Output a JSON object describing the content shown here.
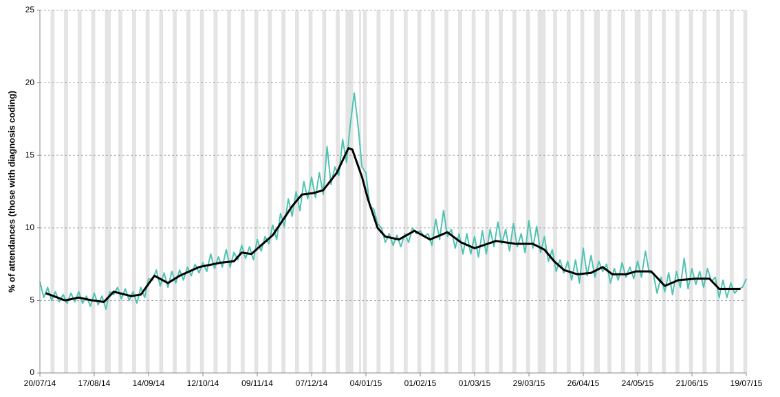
{
  "chart_data": {
    "type": "line",
    "y_label": "% of attendances (those with diagnosis coding)",
    "xlim": [
      0,
      364
    ],
    "ylim": [
      0,
      25
    ],
    "yticks": [
      0,
      5,
      10,
      15,
      20,
      25
    ],
    "xticks": [
      {
        "value": 0,
        "label": "20/07/14"
      },
      {
        "value": 28,
        "label": "17/08/14"
      },
      {
        "value": 56,
        "label": "14/09/14"
      },
      {
        "value": 84,
        "label": "12/10/14"
      },
      {
        "value": 112,
        "label": "09/11/14"
      },
      {
        "value": 140,
        "label": "07/12/14"
      },
      {
        "value": 168,
        "label": "04/01/15"
      },
      {
        "value": 196,
        "label": "01/02/15"
      },
      {
        "value": 224,
        "label": "01/03/15"
      },
      {
        "value": 252,
        "label": "29/03/15"
      },
      {
        "value": 280,
        "label": "26/04/15"
      },
      {
        "value": 308,
        "label": "24/05/15"
      },
      {
        "value": 336,
        "label": "21/06/15"
      },
      {
        "value": 364,
        "label": "19/07/15"
      }
    ],
    "grid": true,
    "band_color": "#e3e3e3",
    "shaded_days": [
      6,
      7,
      13,
      14,
      20,
      21,
      27,
      28,
      34,
      35,
      36,
      41,
      42,
      48,
      49,
      55,
      56,
      62,
      63,
      69,
      70,
      76,
      77,
      83,
      84,
      90,
      91,
      97,
      98,
      104,
      105,
      111,
      112,
      118,
      119,
      125,
      126,
      132,
      133,
      139,
      140,
      146,
      147,
      153,
      154,
      158,
      159,
      160,
      161,
      165,
      167,
      168,
      174,
      175,
      181,
      182,
      188,
      189,
      195,
      196,
      202,
      203,
      209,
      210,
      216,
      217,
      223,
      224,
      230,
      231,
      237,
      238,
      244,
      245,
      251,
      252,
      257,
      258,
      259,
      260,
      265,
      266,
      272,
      273,
      279,
      280,
      286,
      287,
      288,
      293,
      294,
      300,
      301,
      307,
      308,
      309,
      314,
      315,
      321,
      322,
      328,
      329,
      335,
      336,
      342,
      343,
      349,
      350,
      356,
      357,
      363,
      364
    ],
    "series": [
      {
        "color": "#4fc3b3",
        "width": 2,
        "x": [
          0,
          2,
          4,
          6,
          8,
          10,
          12,
          14,
          16,
          18,
          20,
          22,
          24,
          26,
          28,
          30,
          32,
          34,
          36,
          38,
          40,
          42,
          44,
          46,
          48,
          50,
          52,
          54,
          56,
          58,
          60,
          62,
          64,
          66,
          68,
          70,
          72,
          74,
          76,
          78,
          80,
          82,
          84,
          86,
          88,
          90,
          92,
          94,
          96,
          98,
          100,
          102,
          104,
          106,
          108,
          110,
          112,
          114,
          116,
          118,
          120,
          122,
          124,
          126,
          128,
          130,
          132,
          134,
          136,
          138,
          140,
          142,
          144,
          146,
          148,
          150,
          152,
          154,
          156,
          158,
          160,
          162,
          164,
          166,
          168,
          170,
          172,
          174,
          176,
          178,
          180,
          182,
          184,
          186,
          188,
          190,
          192,
          194,
          196,
          198,
          200,
          202,
          204,
          206,
          208,
          210,
          212,
          214,
          216,
          218,
          220,
          222,
          224,
          226,
          228,
          230,
          232,
          234,
          236,
          238,
          240,
          242,
          244,
          246,
          248,
          250,
          252,
          254,
          256,
          258,
          260,
          262,
          264,
          266,
          268,
          270,
          272,
          274,
          276,
          278,
          280,
          282,
          284,
          286,
          288,
          290,
          292,
          294,
          296,
          298,
          300,
          302,
          304,
          306,
          308,
          310,
          312,
          314,
          316,
          318,
          320,
          322,
          324,
          326,
          328,
          330,
          332,
          334,
          336,
          338,
          340,
          342,
          344,
          346,
          348,
          350,
          352,
          354,
          356,
          358,
          360,
          362,
          364
        ],
        "values": [
          6.3,
          5.2,
          5.9,
          5.0,
          5.6,
          4.9,
          5.4,
          4.8,
          5.5,
          4.9,
          5.6,
          4.8,
          5.3,
          4.6,
          5.5,
          4.7,
          5.3,
          4.4,
          5.6,
          5.4,
          5.9,
          5.1,
          5.8,
          5.0,
          5.6,
          4.8,
          5.9,
          5.2,
          6.5,
          6.4,
          7.1,
          6.0,
          6.9,
          5.9,
          7.0,
          6.2,
          7.1,
          6.4,
          7.3,
          6.7,
          7.5,
          6.9,
          7.6,
          7.0,
          8.2,
          7.2,
          8.0,
          7.3,
          8.5,
          7.3,
          8.3,
          7.8,
          8.8,
          7.9,
          8.7,
          7.8,
          9.2,
          8.4,
          9.4,
          8.9,
          10.2,
          9.2,
          11.0,
          10.1,
          12.0,
          10.8,
          12.5,
          11.2,
          13.2,
          12.0,
          13.5,
          12.1,
          13.8,
          12.3,
          15.6,
          13.0,
          14.2,
          13.6,
          16.1,
          14.5,
          17.2,
          19.3,
          17.0,
          14.2,
          13.8,
          11.5,
          11.3,
          10.3,
          10.0,
          9.0,
          9.6,
          8.8,
          9.5,
          8.7,
          9.6,
          9.0,
          10.0,
          9.6,
          9.8,
          9.4,
          9.6,
          8.8,
          10.6,
          9.2,
          11.2,
          9.4,
          9.9,
          8.6,
          9.6,
          8.2,
          9.6,
          8.2,
          9.4,
          8.0,
          9.8,
          8.2,
          9.9,
          8.7,
          10.4,
          8.9,
          9.9,
          8.4,
          10.3,
          8.7,
          9.6,
          8.3,
          10.5,
          8.6,
          10.1,
          8.3,
          9.4,
          7.7,
          8.5,
          7.0,
          7.8,
          6.9,
          7.7,
          6.4,
          7.8,
          6.2,
          8.6,
          6.7,
          8.1,
          6.6,
          7.7,
          7.0,
          7.5,
          6.2,
          7.2,
          6.4,
          7.6,
          6.6,
          7.3,
          6.5,
          7.7,
          6.6,
          8.4,
          6.9,
          6.9,
          5.5,
          6.6,
          5.6,
          6.9,
          5.4,
          7.0,
          5.9,
          7.9,
          5.8,
          7.2,
          6.1,
          7.0,
          5.9,
          7.2,
          6.3,
          6.6,
          5.2,
          6.4,
          5.2,
          6.2,
          5.5,
          5.8,
          5.9,
          6.5
        ]
      },
      {
        "color": "#000000",
        "width": 3,
        "x": [
          3,
          13,
          20,
          27,
          33,
          38,
          47,
          52,
          59,
          66,
          72,
          82,
          93,
          100,
          104,
          109,
          114,
          120,
          125,
          130,
          135,
          141,
          146,
          153,
          159,
          161,
          166,
          169,
          174,
          178,
          185,
          193,
          201,
          210,
          217,
          224,
          235,
          245,
          254,
          260,
          265,
          270,
          277,
          284,
          290,
          295,
          302,
          307,
          315,
          322,
          329,
          338,
          345,
          350,
          361
        ],
        "values": [
          5.5,
          5.0,
          5.2,
          5.0,
          4.9,
          5.6,
          5.3,
          5.4,
          6.7,
          6.2,
          6.7,
          7.3,
          7.6,
          7.7,
          8.3,
          8.2,
          8.8,
          9.5,
          10.5,
          11.5,
          12.3,
          12.4,
          12.6,
          13.8,
          15.5,
          15.4,
          13.5,
          12.0,
          10.0,
          9.4,
          9.2,
          9.8,
          9.2,
          9.7,
          9.0,
          8.6,
          9.1,
          8.9,
          8.9,
          8.5,
          7.7,
          7.1,
          6.8,
          6.9,
          7.3,
          6.8,
          6.8,
          7.0,
          7.0,
          6.0,
          6.4,
          6.5,
          6.5,
          5.8,
          5.8
        ]
      }
    ]
  }
}
